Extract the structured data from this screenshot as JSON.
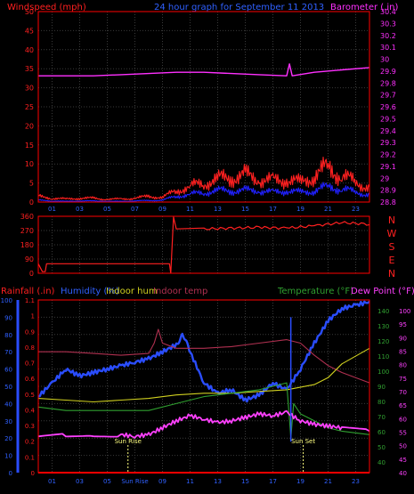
{
  "colors": {
    "background": "#000000",
    "axis": "#ff0000",
    "grid": "#3a3a3a",
    "wind": "#ff2020",
    "gust": "#2020ff",
    "barometer": "#ff30ff",
    "direction": "#ff2020",
    "rain": "#ff0000",
    "humidity": "#2a4dff",
    "indoor_hum": "#d0d020",
    "indoor_temp": "#b03050",
    "temperature": "#30a030",
    "dew_point": "#ff40ff",
    "sun": "#ffff80",
    "tick": "#3060ff"
  },
  "x_ticks": [
    "01",
    "03",
    "05",
    "07",
    "09",
    "11",
    "13",
    "15",
    "17",
    "19",
    "21",
    "23"
  ],
  "x_ticks_bottom": [
    "01",
    "03",
    "05",
    "Sun Rise",
    "09",
    "11",
    "13",
    "15",
    "17",
    "19",
    "21",
    "23"
  ],
  "chart_data": [
    {
      "type": "line",
      "title": "24 hour graph for September 11 2013",
      "ylabel": "Windspeed (mph)",
      "y2label": "Barometer (.in)",
      "ylim": [
        0,
        50
      ],
      "y_ticks": [
        0,
        5,
        10,
        15,
        20,
        25,
        30,
        35,
        40,
        45,
        50
      ],
      "y2lim": [
        28.8,
        30.4
      ],
      "y2_ticks": [
        28.8,
        28.9,
        29.0,
        29.1,
        29.2,
        29.3,
        29.4,
        29.5,
        29.6,
        29.7,
        29.8,
        29.9,
        30.0,
        30.1,
        30.2,
        30.3,
        30.4
      ],
      "y2_tick_labels": [
        "28.8",
        "28.9",
        "29",
        "29.1",
        "29.2",
        "29.3",
        "29.4",
        "29.5",
        "29.6",
        "29.7",
        "29.8",
        "29.9",
        "30",
        "30.1",
        "30.2",
        "30.3",
        "30.4"
      ],
      "xlim": [
        0,
        24
      ],
      "series": [
        {
          "key": "wind",
          "color_key": "wind",
          "axis": "y",
          "x": [
            0,
            1,
            2,
            3,
            4,
            5,
            6,
            7,
            8,
            9,
            10,
            11,
            12,
            13,
            14,
            15,
            16,
            17,
            18,
            19,
            20,
            21,
            22,
            23,
            24
          ],
          "values": [
            1.5,
            1,
            0.8,
            1,
            1,
            0.7,
            0.8,
            1,
            1.5,
            1.2,
            3,
            4,
            5,
            6,
            6.5,
            7,
            6,
            5.5,
            6,
            5,
            7,
            9,
            7,
            5,
            4
          ]
        },
        {
          "key": "gust",
          "color_key": "gust",
          "axis": "y",
          "x": [
            0,
            1,
            2,
            3,
            4,
            5,
            6,
            7,
            8,
            9,
            10,
            11,
            12,
            13,
            14,
            15,
            16,
            17,
            18,
            19,
            20,
            21,
            22,
            23,
            24
          ],
          "values": [
            0.5,
            0.3,
            0.2,
            0.3,
            0.3,
            0.2,
            0.2,
            0.3,
            0.4,
            0.5,
            1.5,
            2,
            2.5,
            3,
            3,
            3,
            3,
            2.5,
            3,
            2.5,
            3,
            4,
            3.5,
            2.5,
            2
          ]
        },
        {
          "key": "barometer",
          "color_key": "barometer",
          "axis": "y2",
          "x": [
            0,
            2,
            4,
            6,
            8,
            10,
            12,
            14,
            16,
            18,
            18.2,
            18.4,
            20,
            22,
            24
          ],
          "values": [
            29.86,
            29.86,
            29.86,
            29.87,
            29.88,
            29.89,
            29.89,
            29.88,
            29.87,
            29.86,
            29.96,
            29.86,
            29.89,
            29.91,
            29.93
          ]
        }
      ]
    },
    {
      "type": "line",
      "ylabel": "Wind direction",
      "ylim": [
        0,
        360
      ],
      "y_ticks": [
        0,
        90,
        180,
        270,
        360
      ],
      "direction_labels": [
        "N",
        "W",
        "S",
        "E",
        "N"
      ],
      "xlim": [
        0,
        24
      ],
      "series": [
        {
          "key": "direction",
          "color_key": "direction",
          "x": [
            0,
            0.3,
            0.5,
            0.6,
            9.5,
            9.6,
            9.8,
            10,
            12,
            14,
            16,
            18,
            20,
            22,
            24
          ],
          "values": [
            60,
            10,
            10,
            60,
            60,
            0,
            355,
            280,
            280,
            285,
            290,
            285,
            300,
            320,
            310
          ]
        }
      ]
    },
    {
      "type": "line",
      "ylabel": "Rainfall (.in)",
      "y_label_humidity": "Humidity (%)",
      "y_label_indoor_hum": "Indoor hum",
      "y_label_indoor_temp": "Indoor temp",
      "y2label": "Temperature (°F)",
      "y3label": "Dew Point (°F)",
      "rain_ticks": [
        "0",
        "0.1",
        "0.2",
        "0.3",
        "0.4",
        "0.5",
        "0.6",
        "0.7",
        "0.8",
        "0.9",
        "1",
        "1.1"
      ],
      "humidity_ticks": [
        0,
        10,
        20,
        30,
        40,
        50,
        60,
        70,
        80,
        90,
        100
      ],
      "temp_ticks": [
        40,
        50,
        60,
        70,
        80,
        90,
        100,
        110,
        120,
        130,
        140
      ],
      "dew_ticks": [
        40,
        45,
        50,
        55,
        60,
        65,
        70,
        75,
        80,
        85,
        90,
        95,
        100
      ],
      "xlim": [
        0,
        24
      ],
      "sun_rise": 6.5,
      "sun_set": 19.2,
      "annotations": {
        "sun_rise": "Sun Rise",
        "sun_set": "Sun Set"
      },
      "series": [
        {
          "key": "humidity",
          "color_key": "humidity",
          "axis": "humidity",
          "x": [
            0,
            1,
            2,
            3,
            4,
            5,
            6,
            7,
            8,
            9,
            10,
            10.5,
            11,
            12,
            13,
            14,
            15,
            16,
            17,
            18,
            19,
            20,
            21,
            22,
            23,
            24
          ],
          "values": [
            44,
            52,
            60,
            56,
            58,
            60,
            62,
            64,
            66,
            70,
            74,
            80,
            70,
            52,
            46,
            48,
            42,
            45,
            52,
            48,
            60,
            75,
            88,
            95,
            97,
            99
          ]
        },
        {
          "key": "indoor_temp",
          "color_key": "indoor_temp",
          "axis": "percent",
          "x": [
            0,
            2,
            4,
            6,
            8,
            8.4,
            8.7,
            9,
            10,
            12,
            14,
            16,
            18,
            19,
            20,
            21,
            22,
            24
          ],
          "values": [
            70,
            70,
            69,
            68,
            69,
            75,
            83,
            75,
            72,
            72,
            73,
            75,
            77,
            75,
            68,
            62,
            58,
            52
          ]
        },
        {
          "key": "indoor_hum",
          "color_key": "indoor_hum",
          "axis": "percent",
          "x": [
            0,
            2,
            4,
            6,
            8,
            10,
            12,
            14,
            16,
            18,
            20,
            21,
            22,
            24
          ],
          "values": [
            43,
            42,
            41,
            42,
            43,
            45,
            46,
            46,
            47,
            48,
            51,
            55,
            63,
            72
          ]
        },
        {
          "key": "temperature",
          "color_key": "temperature",
          "axis": "percent",
          "x": [
            0,
            2,
            4,
            6,
            8,
            10,
            12,
            14,
            16,
            18,
            18.3,
            18.5,
            19,
            20,
            21,
            22,
            24
          ],
          "values": [
            38,
            36,
            36,
            36,
            36,
            40,
            44,
            46,
            48,
            52,
            20,
            40,
            34,
            30,
            26,
            24,
            22
          ]
        },
        {
          "key": "dew_point",
          "color_key": "dew_point",
          "axis": "percent",
          "x": [
            0,
            2,
            4,
            6,
            7,
            8,
            9,
            10,
            11,
            12,
            13,
            14,
            15,
            16,
            17,
            18,
            19,
            20,
            21,
            22,
            24
          ],
          "values": [
            21,
            22,
            22,
            22,
            21,
            22,
            26,
            30,
            33,
            31,
            29,
            30,
            32,
            34,
            33,
            35,
            30,
            28,
            27,
            26,
            24
          ]
        },
        {
          "key": "rain",
          "color_key": "rain",
          "axis": "rain",
          "x": [
            0,
            24
          ],
          "values": [
            0,
            0
          ]
        }
      ]
    }
  ]
}
